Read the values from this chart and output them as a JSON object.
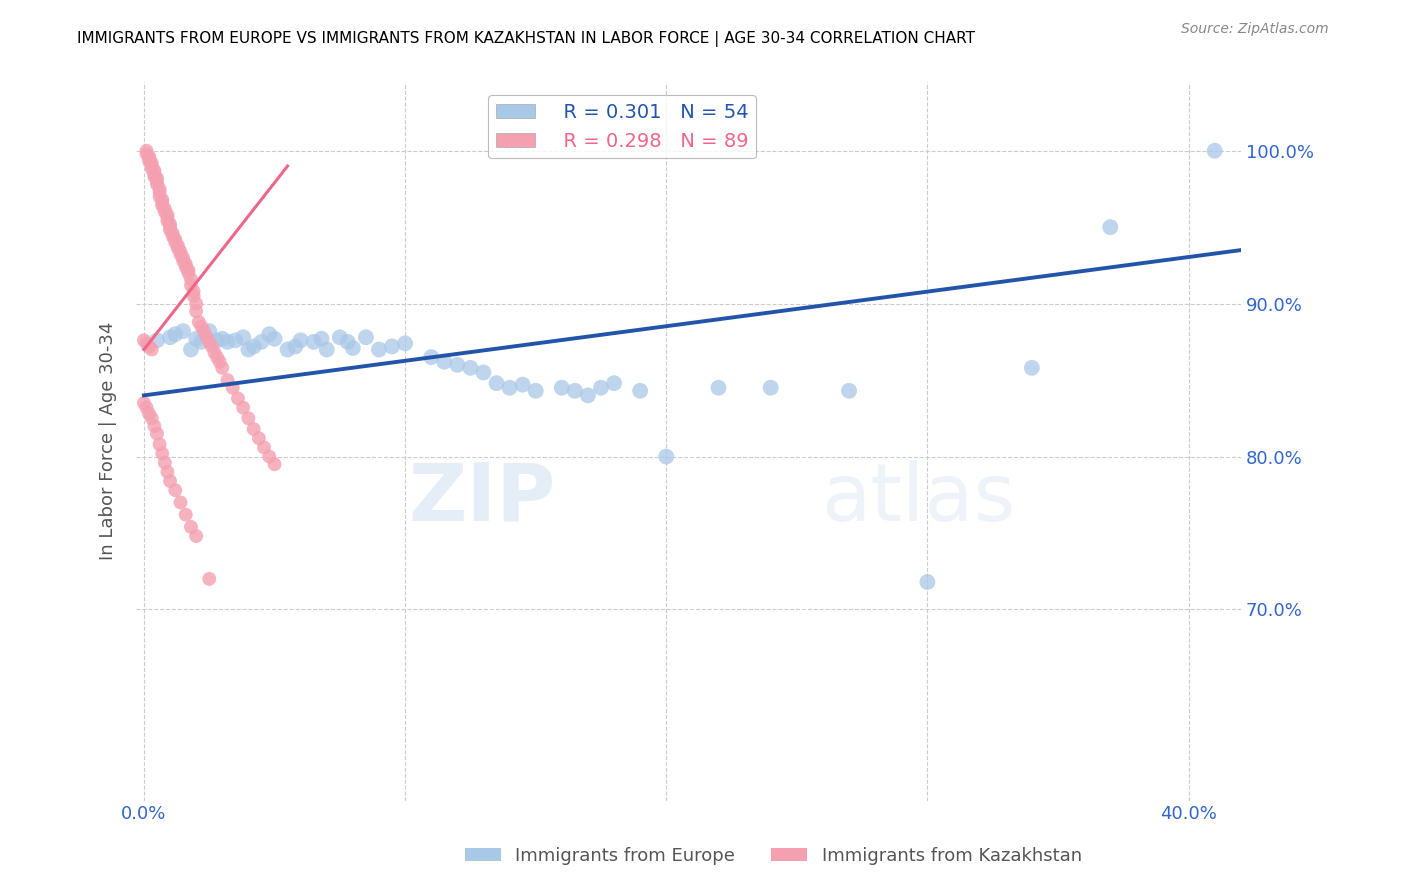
{
  "title": "IMMIGRANTS FROM EUROPE VS IMMIGRANTS FROM KAZAKHSTAN IN LABOR FORCE | AGE 30-34 CORRELATION CHART",
  "source": "Source: ZipAtlas.com",
  "ylabel": "In Labor Force | Age 30-34",
  "xlim": [
    -0.003,
    0.42
  ],
  "ylim": [
    0.575,
    1.045
  ],
  "legend_europe_r": "R = 0.301",
  "legend_europe_n": "N = 54",
  "legend_kaz_r": "R = 0.298",
  "legend_kaz_n": "N = 89",
  "blue_color": "#A8C8E8",
  "blue_line_color": "#2255AA",
  "pink_color": "#F4A0B0",
  "pink_line_color": "#DD3355",
  "pink_trendline_color": "#EE6688",
  "watermark": "ZIPatlas",
  "blue_scatter_x": [
    0.005,
    0.01,
    0.012,
    0.015,
    0.018,
    0.02,
    0.022,
    0.025,
    0.028,
    0.03,
    0.032,
    0.035,
    0.038,
    0.04,
    0.042,
    0.045,
    0.048,
    0.05,
    0.055,
    0.058,
    0.06,
    0.065,
    0.068,
    0.07,
    0.075,
    0.078,
    0.08,
    0.085,
    0.09,
    0.095,
    0.1,
    0.11,
    0.115,
    0.12,
    0.125,
    0.13,
    0.135,
    0.14,
    0.145,
    0.15,
    0.16,
    0.165,
    0.17,
    0.175,
    0.18,
    0.19,
    0.2,
    0.22,
    0.24,
    0.27,
    0.3,
    0.34,
    0.37,
    0.41
  ],
  "blue_scatter_y": [
    0.876,
    0.878,
    0.88,
    0.882,
    0.87,
    0.877,
    0.875,
    0.882,
    0.876,
    0.877,
    0.875,
    0.876,
    0.878,
    0.87,
    0.872,
    0.875,
    0.88,
    0.877,
    0.87,
    0.872,
    0.876,
    0.875,
    0.877,
    0.87,
    0.878,
    0.875,
    0.871,
    0.878,
    0.87,
    0.872,
    0.874,
    0.865,
    0.862,
    0.86,
    0.858,
    0.855,
    0.848,
    0.845,
    0.847,
    0.843,
    0.845,
    0.843,
    0.84,
    0.845,
    0.848,
    0.843,
    0.8,
    0.845,
    0.845,
    0.843,
    0.718,
    0.858,
    0.95,
    1.0
  ],
  "pink_scatter_x": [
    0.001,
    0.001,
    0.002,
    0.002,
    0.002,
    0.003,
    0.003,
    0.003,
    0.004,
    0.004,
    0.004,
    0.005,
    0.005,
    0.005,
    0.006,
    0.006,
    0.006,
    0.007,
    0.007,
    0.007,
    0.008,
    0.008,
    0.009,
    0.009,
    0.009,
    0.01,
    0.01,
    0.01,
    0.011,
    0.011,
    0.012,
    0.012,
    0.013,
    0.013,
    0.014,
    0.014,
    0.015,
    0.015,
    0.016,
    0.016,
    0.017,
    0.017,
    0.018,
    0.018,
    0.019,
    0.019,
    0.02,
    0.02,
    0.021,
    0.022,
    0.023,
    0.024,
    0.025,
    0.026,
    0.027,
    0.028,
    0.029,
    0.03,
    0.032,
    0.034,
    0.036,
    0.038,
    0.04,
    0.042,
    0.044,
    0.046,
    0.048,
    0.05,
    0.0,
    0.001,
    0.002,
    0.003,
    0.0,
    0.001,
    0.002,
    0.003,
    0.004,
    0.005,
    0.006,
    0.007,
    0.008,
    0.009,
    0.01,
    0.012,
    0.014,
    0.016,
    0.018,
    0.02,
    0.025
  ],
  "pink_scatter_y": [
    1.0,
    0.998,
    0.996,
    0.995,
    0.993,
    0.992,
    0.99,
    0.988,
    0.987,
    0.985,
    0.983,
    0.982,
    0.98,
    0.978,
    0.975,
    0.973,
    0.97,
    0.968,
    0.966,
    0.964,
    0.962,
    0.96,
    0.958,
    0.956,
    0.954,
    0.952,
    0.95,
    0.948,
    0.946,
    0.944,
    0.942,
    0.94,
    0.938,
    0.936,
    0.934,
    0.932,
    0.93,
    0.928,
    0.926,
    0.924,
    0.922,
    0.92,
    0.916,
    0.912,
    0.908,
    0.905,
    0.9,
    0.895,
    0.888,
    0.885,
    0.882,
    0.878,
    0.875,
    0.872,
    0.868,
    0.865,
    0.862,
    0.858,
    0.85,
    0.845,
    0.838,
    0.832,
    0.825,
    0.818,
    0.812,
    0.806,
    0.8,
    0.795,
    0.876,
    0.874,
    0.872,
    0.87,
    0.835,
    0.832,
    0.828,
    0.825,
    0.82,
    0.815,
    0.808,
    0.802,
    0.796,
    0.79,
    0.784,
    0.778,
    0.77,
    0.762,
    0.754,
    0.748,
    0.72
  ],
  "blue_trendline_x": [
    0.0,
    0.42
  ],
  "blue_trendline_y": [
    0.84,
    0.935
  ],
  "pink_trendline_x": [
    0.0,
    0.055
  ],
  "pink_trendline_y": [
    0.87,
    0.99
  ],
  "x_tick_positions": [
    0.0,
    0.1,
    0.2,
    0.3,
    0.4
  ],
  "x_tick_labels": [
    "0.0%",
    "",
    "",
    "",
    "40.0%"
  ],
  "y_tick_positions": [
    0.7,
    0.8,
    0.9,
    1.0
  ],
  "y_tick_labels": [
    "70.0%",
    "80.0%",
    "90.0%",
    "100.0%"
  ]
}
